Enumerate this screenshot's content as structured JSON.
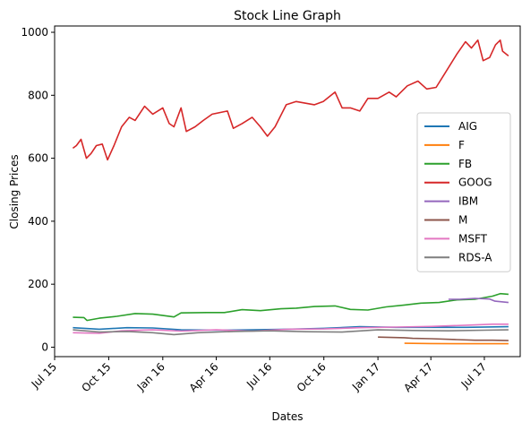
{
  "chart_data": {
    "type": "line",
    "title": "Stock Line Graph",
    "xlabel": "Dates",
    "ylabel": "Closing Prices",
    "xlim": [
      "2015-07-01",
      "2017-08-31"
    ],
    "ylim": [
      -30,
      1020
    ],
    "x_ticks": [
      {
        "date": "2015-07-01",
        "label": "Jul 15"
      },
      {
        "date": "2015-10-01",
        "label": "Oct 15"
      },
      {
        "date": "2016-01-01",
        "label": "Jan 16"
      },
      {
        "date": "2016-04-01",
        "label": "Apr 16"
      },
      {
        "date": "2016-07-01",
        "label": "Jul 16"
      },
      {
        "date": "2016-10-01",
        "label": "Oct 16"
      },
      {
        "date": "2017-01-01",
        "label": "Jan 17"
      },
      {
        "date": "2017-04-01",
        "label": "Apr 17"
      },
      {
        "date": "2017-07-01",
        "label": "Jul 17"
      }
    ],
    "y_ticks": [
      0,
      200,
      400,
      600,
      800,
      1000
    ],
    "grid": false,
    "legend_position": "center-right",
    "series": [
      {
        "name": "AIG",
        "color": "#1f77b4",
        "points": [
          [
            "2015-08-01",
            62
          ],
          [
            "2015-09-15",
            57
          ],
          [
            "2015-11-01",
            62
          ],
          [
            "2015-12-15",
            61
          ],
          [
            "2016-02-01",
            55
          ],
          [
            "2016-04-01",
            54
          ],
          [
            "2016-06-01",
            55
          ],
          [
            "2016-08-01",
            57
          ],
          [
            "2016-10-01",
            60
          ],
          [
            "2016-12-01",
            65
          ],
          [
            "2017-02-01",
            63
          ],
          [
            "2017-04-01",
            63
          ],
          [
            "2017-06-01",
            63
          ],
          [
            "2017-08-11",
            65
          ]
        ]
      },
      {
        "name": "F",
        "color": "#ff7f0e",
        "points": [
          [
            "2017-02-15",
            12.5
          ],
          [
            "2017-04-01",
            11.5
          ],
          [
            "2017-06-01",
            11
          ],
          [
            "2017-08-11",
            11
          ]
        ]
      },
      {
        "name": "FB",
        "color": "#2ca02c",
        "points": [
          [
            "2015-08-01",
            95
          ],
          [
            "2015-08-20",
            94
          ],
          [
            "2015-08-25",
            85
          ],
          [
            "2015-09-15",
            92
          ],
          [
            "2015-10-15",
            98
          ],
          [
            "2015-11-15",
            107
          ],
          [
            "2015-12-15",
            105
          ],
          [
            "2016-01-20",
            96
          ],
          [
            "2016-02-01",
            109
          ],
          [
            "2016-03-15",
            110
          ],
          [
            "2016-04-15",
            110
          ],
          [
            "2016-05-15",
            119
          ],
          [
            "2016-06-15",
            116
          ],
          [
            "2016-07-20",
            122
          ],
          [
            "2016-08-15",
            124
          ],
          [
            "2016-09-15",
            129
          ],
          [
            "2016-10-20",
            131
          ],
          [
            "2016-11-15",
            120
          ],
          [
            "2016-12-15",
            118
          ],
          [
            "2017-01-15",
            128
          ],
          [
            "2017-02-15",
            134
          ],
          [
            "2017-03-15",
            140
          ],
          [
            "2017-04-15",
            142
          ],
          [
            "2017-05-15",
            150
          ],
          [
            "2017-06-15",
            152
          ],
          [
            "2017-07-15",
            162
          ],
          [
            "2017-07-28",
            170
          ],
          [
            "2017-08-11",
            168
          ]
        ]
      },
      {
        "name": "GOOG",
        "color": "#d62728",
        "points": [
          [
            "2015-08-01",
            632
          ],
          [
            "2015-08-07",
            640
          ],
          [
            "2015-08-15",
            660
          ],
          [
            "2015-08-24",
            600
          ],
          [
            "2015-09-01",
            615
          ],
          [
            "2015-09-10",
            640
          ],
          [
            "2015-09-20",
            645
          ],
          [
            "2015-09-29",
            595
          ],
          [
            "2015-10-10",
            640
          ],
          [
            "2015-10-23",
            700
          ],
          [
            "2015-11-05",
            730
          ],
          [
            "2015-11-15",
            720
          ],
          [
            "2015-12-01",
            765
          ],
          [
            "2015-12-15",
            740
          ],
          [
            "2016-01-01",
            760
          ],
          [
            "2016-01-12",
            710
          ],
          [
            "2016-01-20",
            700
          ],
          [
            "2016-02-01",
            760
          ],
          [
            "2016-02-10",
            685
          ],
          [
            "2016-02-25",
            700
          ],
          [
            "2016-03-10",
            720
          ],
          [
            "2016-03-25",
            740
          ],
          [
            "2016-04-20",
            750
          ],
          [
            "2016-04-30",
            695
          ],
          [
            "2016-05-15",
            710
          ],
          [
            "2016-06-01",
            730
          ],
          [
            "2016-06-15",
            700
          ],
          [
            "2016-06-27",
            670
          ],
          [
            "2016-07-10",
            700
          ],
          [
            "2016-07-29",
            770
          ],
          [
            "2016-08-15",
            780
          ],
          [
            "2016-09-15",
            770
          ],
          [
            "2016-09-30",
            780
          ],
          [
            "2016-10-20",
            810
          ],
          [
            "2016-11-01",
            760
          ],
          [
            "2016-11-15",
            760
          ],
          [
            "2016-12-01",
            750
          ],
          [
            "2016-12-15",
            790
          ],
          [
            "2017-01-01",
            790
          ],
          [
            "2017-01-20",
            810
          ],
          [
            "2017-02-01",
            795
          ],
          [
            "2017-02-20",
            830
          ],
          [
            "2017-03-10",
            845
          ],
          [
            "2017-03-25",
            820
          ],
          [
            "2017-04-10",
            825
          ],
          [
            "2017-04-25",
            870
          ],
          [
            "2017-05-15",
            930
          ],
          [
            "2017-05-30",
            970
          ],
          [
            "2017-06-09",
            950
          ],
          [
            "2017-06-20",
            975
          ],
          [
            "2017-06-29",
            910
          ],
          [
            "2017-07-10",
            920
          ],
          [
            "2017-07-20",
            960
          ],
          [
            "2017-07-28",
            975
          ],
          [
            "2017-08-01",
            940
          ],
          [
            "2017-08-11",
            925
          ]
        ]
      },
      {
        "name": "IBM",
        "color": "#9467bd",
        "points": [
          [
            "2017-05-01",
            152
          ],
          [
            "2017-05-20",
            152
          ],
          [
            "2017-06-15",
            155
          ],
          [
            "2017-07-10",
            153
          ],
          [
            "2017-07-19",
            146
          ],
          [
            "2017-08-11",
            142
          ]
        ]
      },
      {
        "name": "M",
        "color": "#8c564b",
        "points": [
          [
            "2017-01-01",
            32
          ],
          [
            "2017-02-15",
            30
          ],
          [
            "2017-03-01",
            28
          ],
          [
            "2017-04-01",
            27
          ],
          [
            "2017-05-15",
            24
          ],
          [
            "2017-06-15",
            22
          ],
          [
            "2017-07-15",
            22
          ],
          [
            "2017-08-11",
            21
          ]
        ]
      },
      {
        "name": "MSFT",
        "color": "#e377c2",
        "points": [
          [
            "2015-08-01",
            46
          ],
          [
            "2015-09-15",
            44
          ],
          [
            "2015-10-23",
            52
          ],
          [
            "2015-12-15",
            55
          ],
          [
            "2016-02-01",
            51
          ],
          [
            "2016-04-01",
            55
          ],
          [
            "2016-06-01",
            51
          ],
          [
            "2016-08-01",
            57
          ],
          [
            "2016-10-01",
            58
          ],
          [
            "2016-12-01",
            62
          ],
          [
            "2017-02-01",
            64
          ],
          [
            "2017-04-01",
            66
          ],
          [
            "2017-06-01",
            70
          ],
          [
            "2017-07-15",
            73
          ],
          [
            "2017-08-11",
            73
          ]
        ]
      },
      {
        "name": "RDS-A",
        "color": "#7f7f7f",
        "points": [
          [
            "2015-08-01",
            55
          ],
          [
            "2015-09-15",
            48
          ],
          [
            "2015-11-01",
            50
          ],
          [
            "2015-12-15",
            46
          ],
          [
            "2016-01-20",
            40
          ],
          [
            "2016-03-01",
            46
          ],
          [
            "2016-05-01",
            50
          ],
          [
            "2016-07-01",
            52
          ],
          [
            "2016-09-01",
            49
          ],
          [
            "2016-11-01",
            48
          ],
          [
            "2017-01-01",
            55
          ],
          [
            "2017-03-01",
            53
          ],
          [
            "2017-05-01",
            52
          ],
          [
            "2017-07-01",
            54
          ],
          [
            "2017-08-11",
            55
          ]
        ]
      }
    ]
  }
}
